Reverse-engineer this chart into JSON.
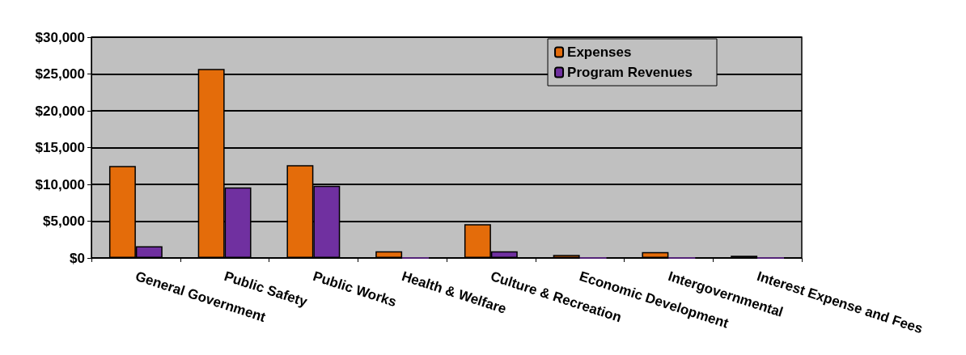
{
  "chart_data": {
    "type": "bar",
    "categories": [
      "General Government",
      "Public Safety",
      "Public Works",
      "Health & Welfare",
      "Culture & Recreation",
      "Economic Development",
      "Intergovernmental",
      "Interest Expense and Fees"
    ],
    "series": [
      {
        "name": "Expenses",
        "color": "#e46c0a",
        "values": [
          12500,
          25700,
          12600,
          900,
          4600,
          400,
          800,
          300
        ]
      },
      {
        "name": "Program Revenues",
        "color": "#7030a0",
        "values": [
          1600,
          9600,
          9800,
          0,
          900,
          0,
          0,
          0
        ]
      }
    ],
    "ylim": [
      0,
      30000
    ],
    "yticks": [
      {
        "value": 0,
        "label": "$0"
      },
      {
        "value": 5000,
        "label": "$5,000"
      },
      {
        "value": 10000,
        "label": "$10,000"
      },
      {
        "value": 15000,
        "label": "$15,000"
      },
      {
        "value": 20000,
        "label": "$20,000"
      },
      {
        "value": 25000,
        "label": "$25,000"
      },
      {
        "value": 30000,
        "label": "$30,000"
      }
    ],
    "grid": "y",
    "legend": "top right"
  }
}
